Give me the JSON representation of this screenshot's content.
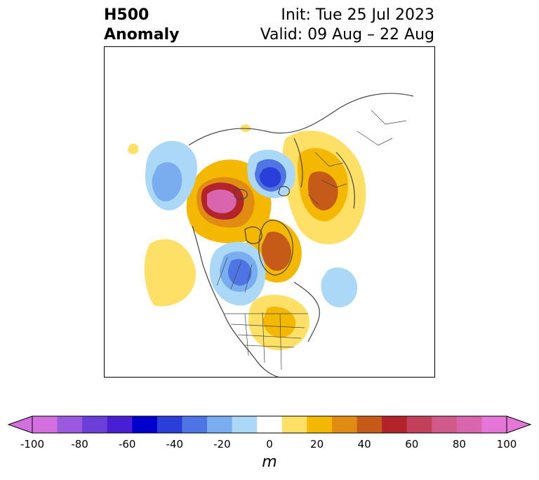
{
  "header": {
    "title_line1": "H500",
    "title_line2": "Anomaly",
    "init": "Init: Tue 25 Jul 2023",
    "valid": "Valid: 09 Aug – 22 Aug"
  },
  "map": {
    "projection": "north-polar-stereographic",
    "features": [
      "coastlines",
      "country-borders",
      "state-province-borders"
    ],
    "anomaly_centers": [
      {
        "region": "Beaufort Sea / Chukchi",
        "sign": "positive",
        "max_m": 80
      },
      {
        "region": "East Siberian / Laptev Sea",
        "sign": "negative",
        "max_m": -60
      },
      {
        "region": "Scandinavia / Northwest Russia",
        "sign": "positive",
        "max_m": 50
      },
      {
        "region": "Greenland / Baffin Bay",
        "sign": "positive",
        "max_m": 50
      },
      {
        "region": "Hudson Bay / Central Canada",
        "sign": "negative",
        "max_m": -50
      },
      {
        "region": "Western Canada / Alaska Panhandle",
        "sign": "negative",
        "max_m": -40
      },
      {
        "region": "Eastern United States",
        "sign": "positive",
        "max_m": 30
      },
      {
        "region": "North Pacific",
        "sign": "positive",
        "max_m": 20
      },
      {
        "region": "North Atlantic",
        "sign": "negative",
        "max_m": -20
      }
    ]
  },
  "colorbar": {
    "unit": "m",
    "ticks": [
      "-100",
      "-80",
      "-60",
      "-40",
      "-20",
      "0",
      "20",
      "40",
      "60",
      "80",
      "100"
    ],
    "colors": [
      "#d370e0",
      "#9b59e0",
      "#6d3fd9",
      "#4a1fd4",
      "#0000cc",
      "#2a3fd9",
      "#4f74e3",
      "#78aef0",
      "#acd8f7",
      "#ffffff",
      "#ffe066",
      "#f5b800",
      "#e08c12",
      "#c65a18",
      "#b3242a",
      "#c2405a",
      "#d05a8a",
      "#d965ae",
      "#e575d6"
    ],
    "extend_min_color": "#d370e0",
    "extend_max_color": "#e575d6"
  }
}
